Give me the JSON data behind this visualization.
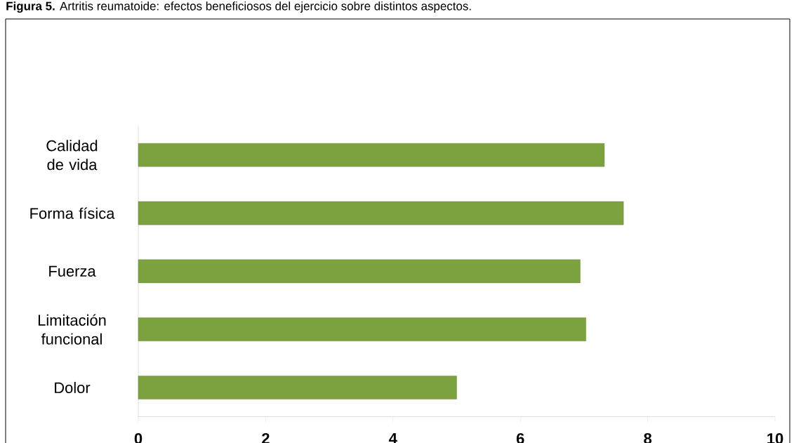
{
  "chart_data": {
    "type": "bar",
    "orientation": "horizontal",
    "title": "**Figura 5.** Artritis reumatoide: efectos beneficiosos del ejercicio sobre distintos aspectos.",
    "categories": [
      "Calidad de vida",
      "Forma física",
      "Fuerza",
      "Limitación funcional",
      "Dolor"
    ],
    "values": [
      7.32,
      7.62,
      6.94,
      7.03,
      5.0
    ],
    "color": "#7ba23f",
    "xlim": [
      0,
      10
    ],
    "xticks": [
      0,
      2,
      4,
      6,
      8,
      10
    ]
  }
}
